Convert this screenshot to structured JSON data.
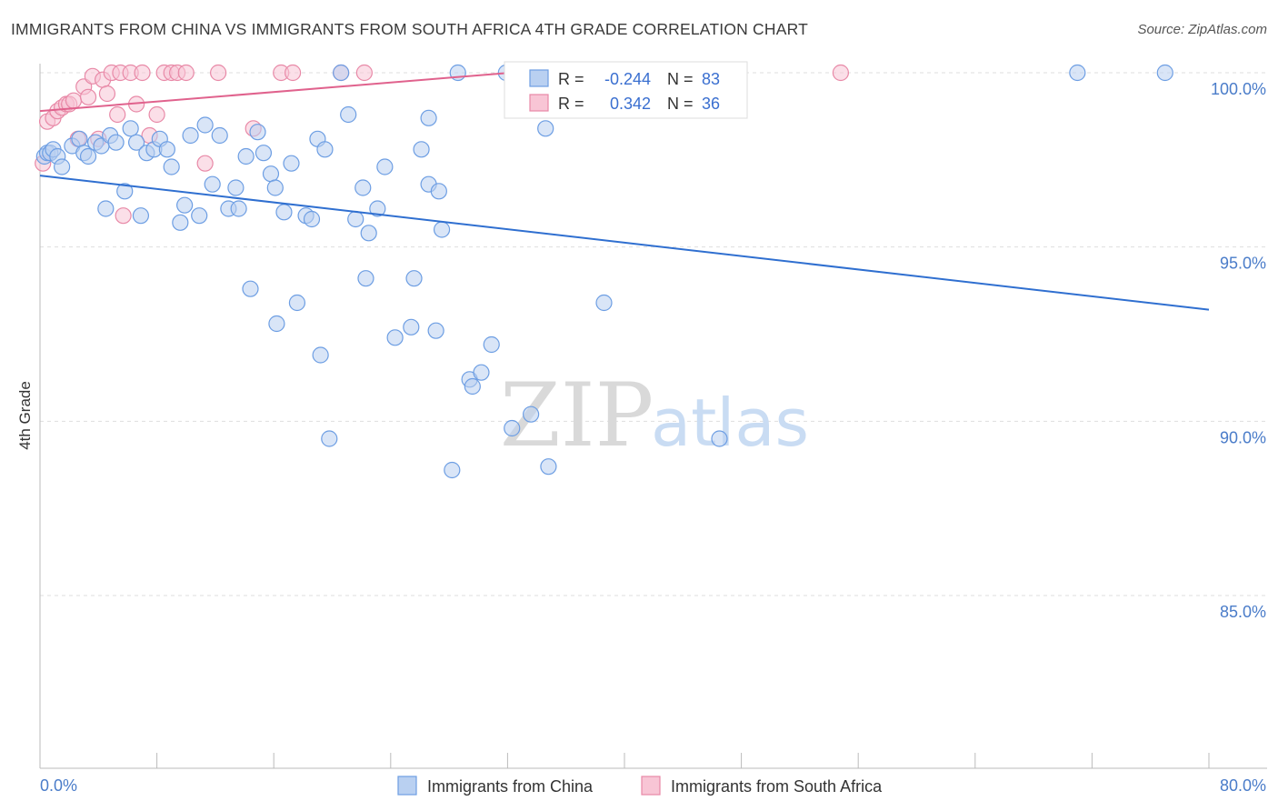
{
  "header": {
    "title": "IMMIGRANTS FROM CHINA VS IMMIGRANTS FROM SOUTH AFRICA 4TH GRADE CORRELATION CHART",
    "source": "Source: ZipAtlas.com"
  },
  "watermark": {
    "zip": "ZIP",
    "atlas": "atlas"
  },
  "stats": {
    "r_label": "R =",
    "n_label": "N =",
    "series": [
      {
        "r": "-0.244",
        "n": "83",
        "color": "#6d9ee3",
        "fill": "#b9d0f1"
      },
      {
        "r": "0.342",
        "n": "36",
        "color": "#e889a7",
        "fill": "#f8c5d5"
      }
    ]
  },
  "chart_data": {
    "type": "scatter",
    "title": "IMMIGRANTS FROM CHINA VS IMMIGRANTS FROM SOUTH AFRICA 4TH GRADE CORRELATION CHART",
    "xlabel": "",
    "ylabel": "4th Grade",
    "xlim": [
      0,
      80
    ],
    "ylim": [
      80,
      100.6
    ],
    "x_tick_labels": [
      "0.0%",
      "80.0%"
    ],
    "y_ticks": [
      85,
      90,
      95,
      100
    ],
    "y_tick_labels": [
      "85.0%",
      "90.0%",
      "95.0%",
      "100.0%"
    ],
    "grid": true,
    "legend": [
      "Immigrants from China",
      "Immigrants from South Africa"
    ],
    "series": [
      {
        "name": "Immigrants from China",
        "color": "#6d9ee3",
        "fill": "#b9d0f1",
        "trend": {
          "x": [
            0,
            80
          ],
          "y": [
            97.05,
            93.2
          ]
        },
        "points": [
          [
            0.3,
            97.6
          ],
          [
            0.5,
            97.7
          ],
          [
            0.7,
            97.7
          ],
          [
            0.9,
            97.8
          ],
          [
            1.2,
            97.6
          ],
          [
            1.5,
            97.3
          ],
          [
            2.2,
            97.9
          ],
          [
            2.7,
            98.1
          ],
          [
            3.0,
            97.7
          ],
          [
            3.3,
            97.6
          ],
          [
            3.8,
            98.0
          ],
          [
            4.2,
            97.9
          ],
          [
            4.8,
            98.2
          ],
          [
            5.2,
            98.0
          ],
          [
            5.8,
            96.6
          ],
          [
            6.2,
            98.4
          ],
          [
            6.6,
            98.0
          ],
          [
            6.9,
            95.9
          ],
          [
            7.3,
            97.7
          ],
          [
            7.8,
            97.8
          ],
          [
            8.2,
            98.1
          ],
          [
            8.7,
            97.8
          ],
          [
            9.0,
            97.3
          ],
          [
            9.6,
            95.7
          ],
          [
            10.3,
            98.2
          ],
          [
            10.9,
            95.9
          ],
          [
            11.3,
            98.5
          ],
          [
            11.8,
            96.8
          ],
          [
            12.3,
            98.2
          ],
          [
            12.9,
            96.1
          ],
          [
            13.4,
            96.7
          ],
          [
            14.1,
            97.6
          ],
          [
            14.4,
            93.8
          ],
          [
            14.9,
            98.3
          ],
          [
            15.3,
            97.7
          ],
          [
            15.8,
            97.1
          ],
          [
            16.1,
            96.7
          ],
          [
            16.2,
            92.8
          ],
          [
            16.7,
            96.0
          ],
          [
            17.2,
            97.4
          ],
          [
            17.6,
            93.4
          ],
          [
            18.2,
            95.9
          ],
          [
            18.6,
            95.8
          ],
          [
            19.0,
            98.1
          ],
          [
            19.2,
            91.9
          ],
          [
            19.5,
            97.8
          ],
          [
            19.8,
            89.5
          ],
          [
            20.6,
            100.0
          ],
          [
            21.1,
            98.8
          ],
          [
            21.6,
            95.8
          ],
          [
            22.1,
            96.7
          ],
          [
            22.3,
            94.1
          ],
          [
            22.5,
            95.4
          ],
          [
            23.1,
            96.1
          ],
          [
            23.6,
            97.3
          ],
          [
            24.3,
            92.4
          ],
          [
            25.4,
            92.7
          ],
          [
            25.6,
            94.1
          ],
          [
            26.1,
            97.8
          ],
          [
            26.6,
            96.8
          ],
          [
            27.1,
            92.6
          ],
          [
            27.5,
            95.5
          ],
          [
            27.3,
            96.6
          ],
          [
            28.2,
            88.6
          ],
          [
            28.6,
            100.0
          ],
          [
            29.4,
            91.2
          ],
          [
            29.6,
            91.0
          ],
          [
            30.2,
            91.4
          ],
          [
            30.9,
            92.2
          ],
          [
            31.9,
            100.0
          ],
          [
            32.3,
            89.8
          ],
          [
            33.6,
            90.2
          ],
          [
            34.6,
            98.4
          ],
          [
            34.8,
            88.7
          ],
          [
            38.6,
            93.4
          ],
          [
            40.3,
            100.0
          ],
          [
            46.5,
            89.5
          ],
          [
            71.0,
            100.0
          ],
          [
            77.0,
            100.0
          ],
          [
            4.5,
            96.1
          ],
          [
            9.9,
            96.2
          ],
          [
            13.6,
            96.1
          ],
          [
            26.6,
            98.7
          ]
        ]
      },
      {
        "name": "Immigrants from South Africa",
        "color": "#e889a7",
        "fill": "#f8c5d5",
        "trend": {
          "x": [
            0,
            32.2
          ],
          "y": [
            98.9,
            100.0
          ]
        },
        "points": [
          [
            0.2,
            97.4
          ],
          [
            0.5,
            98.6
          ],
          [
            0.9,
            98.7
          ],
          [
            1.2,
            98.9
          ],
          [
            1.5,
            99.0
          ],
          [
            1.8,
            99.1
          ],
          [
            2.0,
            99.1
          ],
          [
            2.3,
            99.2
          ],
          [
            2.6,
            98.1
          ],
          [
            3.0,
            99.6
          ],
          [
            3.3,
            99.3
          ],
          [
            3.6,
            99.9
          ],
          [
            4.0,
            98.1
          ],
          [
            4.3,
            99.8
          ],
          [
            4.6,
            99.4
          ],
          [
            4.9,
            100.0
          ],
          [
            5.3,
            98.8
          ],
          [
            5.5,
            100.0
          ],
          [
            5.7,
            95.9
          ],
          [
            6.2,
            100.0
          ],
          [
            6.6,
            99.1
          ],
          [
            7.0,
            100.0
          ],
          [
            7.5,
            98.2
          ],
          [
            8.0,
            98.8
          ],
          [
            8.5,
            100.0
          ],
          [
            9.0,
            100.0
          ],
          [
            9.4,
            100.0
          ],
          [
            10.0,
            100.0
          ],
          [
            11.3,
            97.4
          ],
          [
            12.2,
            100.0
          ],
          [
            14.6,
            98.4
          ],
          [
            16.5,
            100.0
          ],
          [
            17.3,
            100.0
          ],
          [
            20.6,
            100.0
          ],
          [
            22.2,
            100.0
          ],
          [
            54.8,
            100.0
          ]
        ]
      }
    ]
  }
}
